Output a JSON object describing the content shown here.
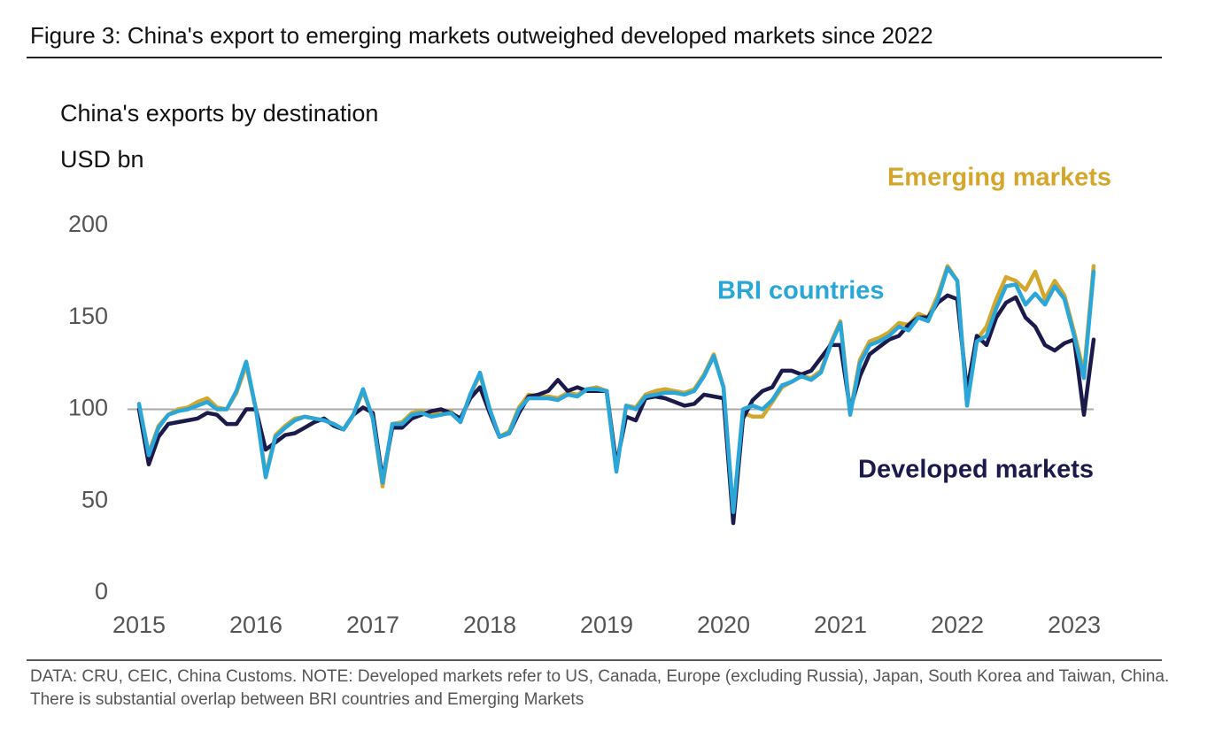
{
  "chart_data": {
    "type": "line",
    "title": "Figure 3: China's export to emerging markets outweighed developed markets since 2022",
    "subtitle": "China's exports by destination",
    "y_label": "USD bn",
    "note": "DATA: CRU, CEIC, China Customs. NOTE: Developed markets refer to US, Canada, Europe (excluding Russia), Japan, South Korea and Taiwan, China. There is substantial overlap between BRI countries and Emerging Markets",
    "x": [
      2015,
      2015.083,
      2015.167,
      2015.25,
      2015.333,
      2015.417,
      2015.5,
      2015.583,
      2015.667,
      2015.75,
      2015.833,
      2015.917,
      2016,
      2016.083,
      2016.167,
      2016.25,
      2016.333,
      2016.417,
      2016.5,
      2016.583,
      2016.667,
      2016.75,
      2016.833,
      2016.917,
      2017,
      2017.083,
      2017.167,
      2017.25,
      2017.333,
      2017.417,
      2017.5,
      2017.583,
      2017.667,
      2017.75,
      2017.833,
      2017.917,
      2018,
      2018.083,
      2018.167,
      2018.25,
      2018.333,
      2018.417,
      2018.5,
      2018.583,
      2018.667,
      2018.75,
      2018.833,
      2018.917,
      2019,
      2019.083,
      2019.167,
      2019.25,
      2019.333,
      2019.417,
      2019.5,
      2019.583,
      2019.667,
      2019.75,
      2019.833,
      2019.917,
      2020,
      2020.083,
      2020.167,
      2020.25,
      2020.333,
      2020.417,
      2020.5,
      2020.583,
      2020.667,
      2020.75,
      2020.833,
      2020.917,
      2021,
      2021.083,
      2021.167,
      2021.25,
      2021.333,
      2021.417,
      2021.5,
      2021.583,
      2021.667,
      2021.75,
      2021.833,
      2021.917,
      2022,
      2022.083,
      2022.167,
      2022.25,
      2022.333,
      2022.417,
      2022.5,
      2022.583,
      2022.667,
      2022.75,
      2022.833,
      2022.917,
      2023,
      2023.083,
      2023.167
    ],
    "series": [
      {
        "name": "Emerging markets",
        "color": "#d4a72c",
        "values": [
          102,
          76,
          91,
          97,
          100,
          101,
          104,
          106,
          101,
          100,
          109,
          124,
          100,
          64,
          86,
          91,
          95,
          96,
          95,
          94,
          92,
          89,
          97,
          110,
          95,
          58,
          92,
          93,
          98,
          99,
          97,
          98,
          99,
          93,
          108,
          119,
          100,
          85,
          88,
          101,
          108,
          107,
          107,
          106,
          109,
          108,
          111,
          112,
          110,
          67,
          102,
          101,
          108,
          110,
          111,
          110,
          109,
          111,
          119,
          130,
          112,
          43,
          98,
          96,
          96,
          104,
          112,
          115,
          118,
          117,
          121,
          136,
          148,
          98,
          127,
          137,
          139,
          142,
          147,
          146,
          152,
          150,
          162,
          178,
          170,
          103,
          138,
          145,
          160,
          172,
          170,
          165,
          175,
          160,
          170,
          162,
          142,
          120,
          178
        ]
      },
      {
        "name": "BRI countries",
        "color": "#2aa6d9",
        "values": [
          103,
          75,
          90,
          97,
          99,
          100,
          102,
          104,
          100,
          100,
          110,
          126,
          100,
          63,
          85,
          90,
          94,
          96,
          95,
          94,
          92,
          89,
          97,
          111,
          95,
          60,
          92,
          92,
          97,
          98,
          96,
          97,
          98,
          93,
          108,
          120,
          100,
          85,
          87,
          100,
          106,
          106,
          106,
          105,
          108,
          107,
          111,
          111,
          110,
          66,
          102,
          100,
          107,
          108,
          109,
          109,
          108,
          110,
          118,
          129,
          112,
          44,
          100,
          102,
          100,
          105,
          113,
          115,
          118,
          116,
          120,
          135,
          147,
          97,
          125,
          135,
          137,
          140,
          145,
          143,
          150,
          148,
          160,
          177,
          170,
          102,
          137,
          140,
          155,
          167,
          168,
          157,
          163,
          157,
          167,
          160,
          140,
          117,
          175
        ]
      },
      {
        "name": "Developed markets",
        "color": "#1c1a4a",
        "values": [
          100,
          70,
          85,
          92,
          93,
          94,
          95,
          98,
          97,
          92,
          92,
          100,
          100,
          78,
          82,
          86,
          87,
          90,
          93,
          95,
          91,
          89,
          97,
          101,
          98,
          62,
          90,
          90,
          95,
          97,
          99,
          100,
          98,
          95,
          106,
          112,
          98,
          85,
          87,
          98,
          107,
          108,
          110,
          116,
          110,
          112,
          110,
          110,
          110,
          70,
          96,
          94,
          106,
          107,
          106,
          104,
          102,
          103,
          108,
          107,
          106,
          38,
          95,
          105,
          110,
          112,
          121,
          121,
          119,
          121,
          128,
          135,
          135,
          100,
          118,
          130,
          134,
          138,
          140,
          146,
          150,
          150,
          158,
          162,
          160,
          110,
          140,
          135,
          150,
          158,
          161,
          150,
          145,
          135,
          132,
          136,
          138,
          97,
          138
        ]
      }
    ],
    "xlim": [
      2014.9,
      2023.4
    ],
    "xticks": [
      2015,
      2016,
      2017,
      2018,
      2019,
      2020,
      2021,
      2022,
      2023
    ],
    "ylim": [
      0,
      200
    ],
    "yticks": [
      0,
      50,
      100,
      150,
      200
    ],
    "reference_line": 100
  }
}
